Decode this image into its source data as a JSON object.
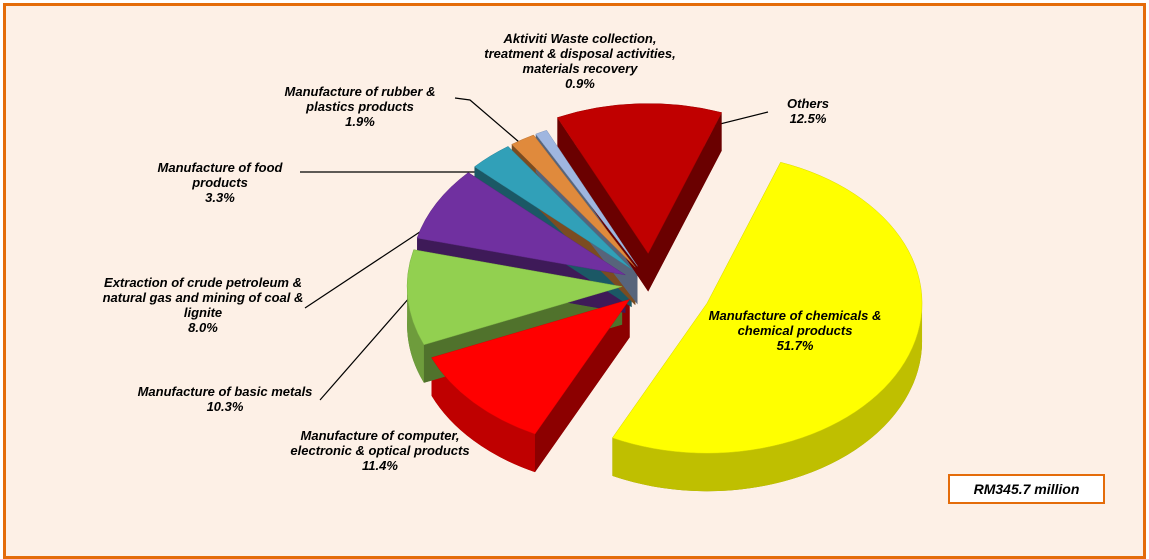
{
  "chart_data": {
    "type": "pie",
    "categories": [
      "Manufacture of chemicals & chemical products",
      "Manufacture of computer, electronic & optical products",
      "Manufacture of basic metals",
      "Extraction of crude petroleum & natural gas and mining of coal & lignite",
      "Manufacture of food products",
      "Manufacture of rubber & plastics products",
      "Aktiviti Waste collection, treatment & disposal activities, materials recovery",
      "Others"
    ],
    "values": [
      51.7,
      11.4,
      10.3,
      8.0,
      3.3,
      1.9,
      0.9,
      12.5
    ],
    "value_labels": [
      "51.7%",
      "11.4%",
      "10.3%",
      "8.0%",
      "3.3%",
      "1.9%",
      "0.9%",
      "12.5%"
    ],
    "colors": [
      "#ffff00",
      "#ff0000",
      "#92d050",
      "#7030a0",
      "#31a0b8",
      "#e08a3c",
      "#9fb6e0",
      "#c00000"
    ],
    "annotation": "RM345.7 million"
  }
}
